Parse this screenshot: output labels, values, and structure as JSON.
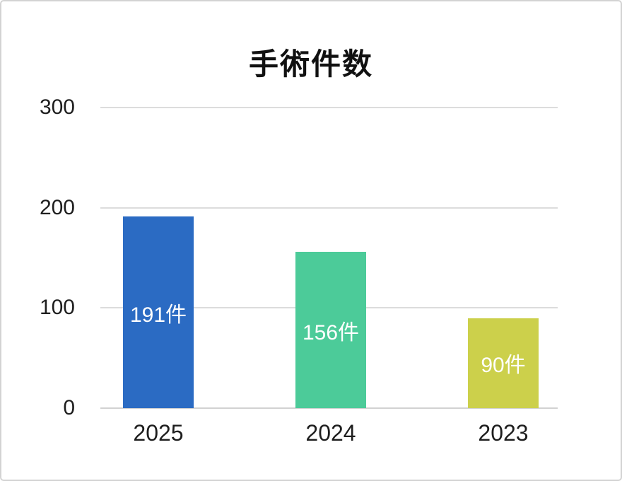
{
  "chart_data": {
    "type": "bar",
    "title": "手術件数",
    "categories": [
      "2025",
      "2024",
      "2023"
    ],
    "values": [
      191,
      156,
      90
    ],
    "bar_labels": [
      "191件",
      "156件",
      "90件"
    ],
    "unit": "件",
    "xlabel": "",
    "ylabel": "",
    "ylim": [
      0,
      300
    ],
    "yticks": [
      0,
      100,
      200,
      300
    ],
    "grid": true,
    "legend_position": "none",
    "bar_colors": [
      "#2b6bc3",
      "#4ccb99",
      "#ccd04b"
    ],
    "value_label_color": "#ffffff"
  },
  "styles": {
    "background_color": "#ffffff",
    "card_border_color": "#d3d3d3",
    "gridline_color": "#dcdcdc",
    "axis_line_color": "#d2d2d2",
    "axis_text_color": "#1e1e1e",
    "title_color": "#111111"
  }
}
